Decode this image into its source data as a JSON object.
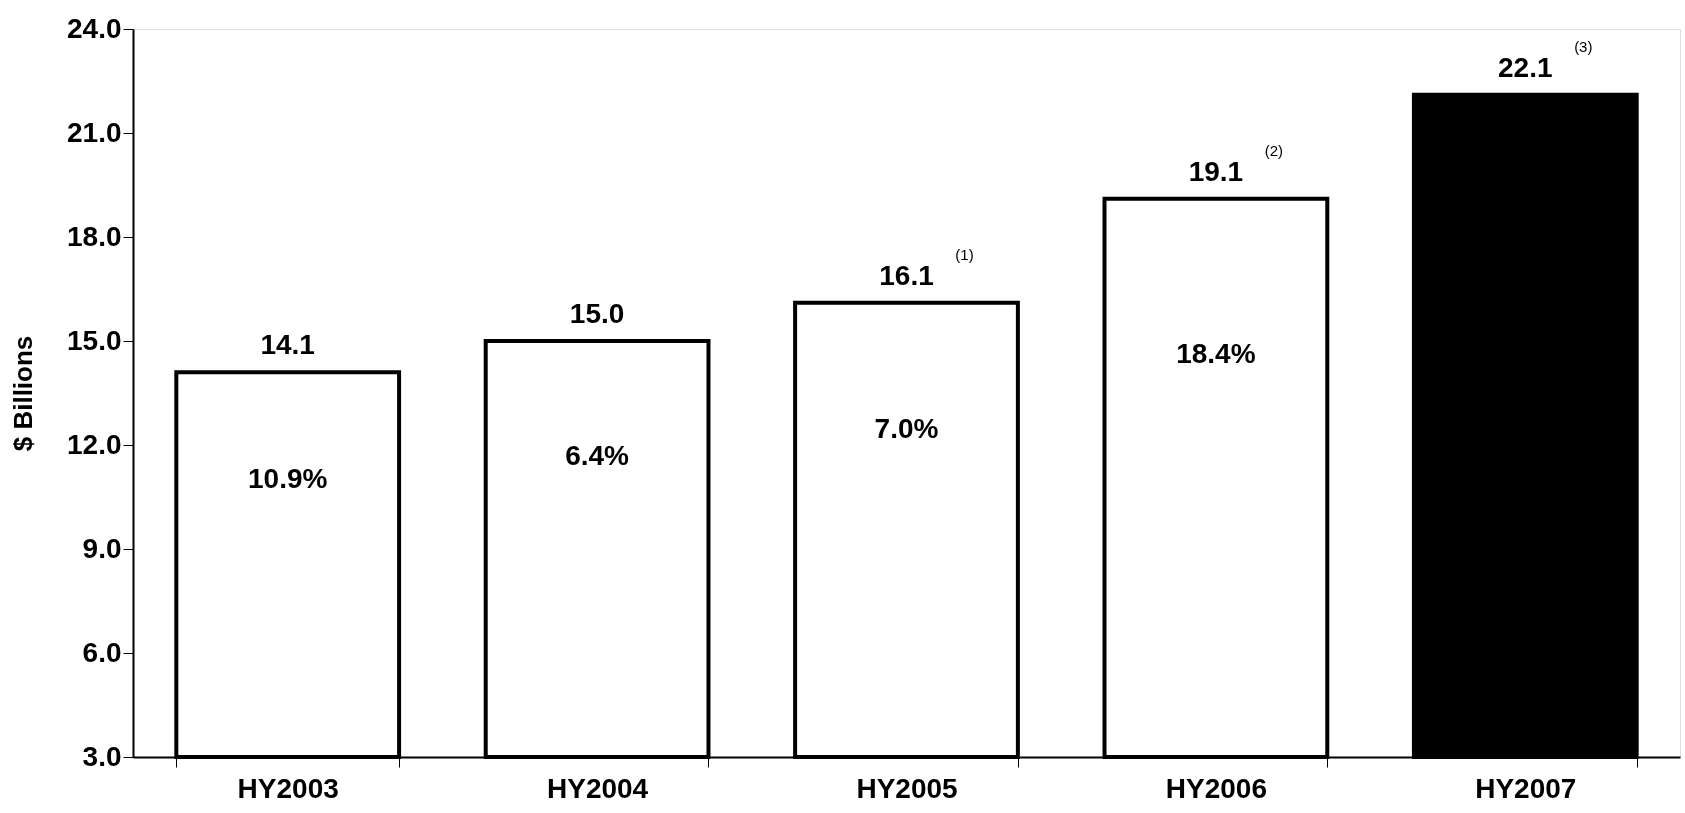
{
  "chart_data": {
    "type": "bar",
    "ylabel": "$ Billions",
    "categories": [
      "HY2003",
      "HY2004",
      "HY2005",
      "HY2006",
      "HY2007"
    ],
    "values": [
      14.1,
      15.0,
      16.1,
      19.1,
      22.1
    ],
    "colors": [
      "#ffffff",
      "#ffffff",
      "#ffffff",
      "#ffffff",
      "#000000"
    ],
    "value_labels": [
      "14.1",
      "15.0",
      "16.1",
      "19.1",
      "22.1"
    ],
    "ylim": [
      3,
      24
    ],
    "yticks": [
      {
        "value": 3,
        "label": "3.0"
      },
      {
        "value": 6,
        "label": "6.0"
      },
      {
        "value": 9,
        "label": "9.0"
      },
      {
        "value": 12,
        "label": "12.0"
      },
      {
        "value": 15,
        "label": "15.0"
      },
      {
        "value": 18,
        "label": "18.0"
      },
      {
        "value": 21,
        "label": "21.0"
      },
      {
        "value": 24,
        "label": "24.0"
      }
    ],
    "annotations": [
      "10.9%",
      "6.4%",
      "7.0%",
      "18.4%",
      "(1)",
      "(2)",
      "(3)"
    ],
    "grid": false
  }
}
